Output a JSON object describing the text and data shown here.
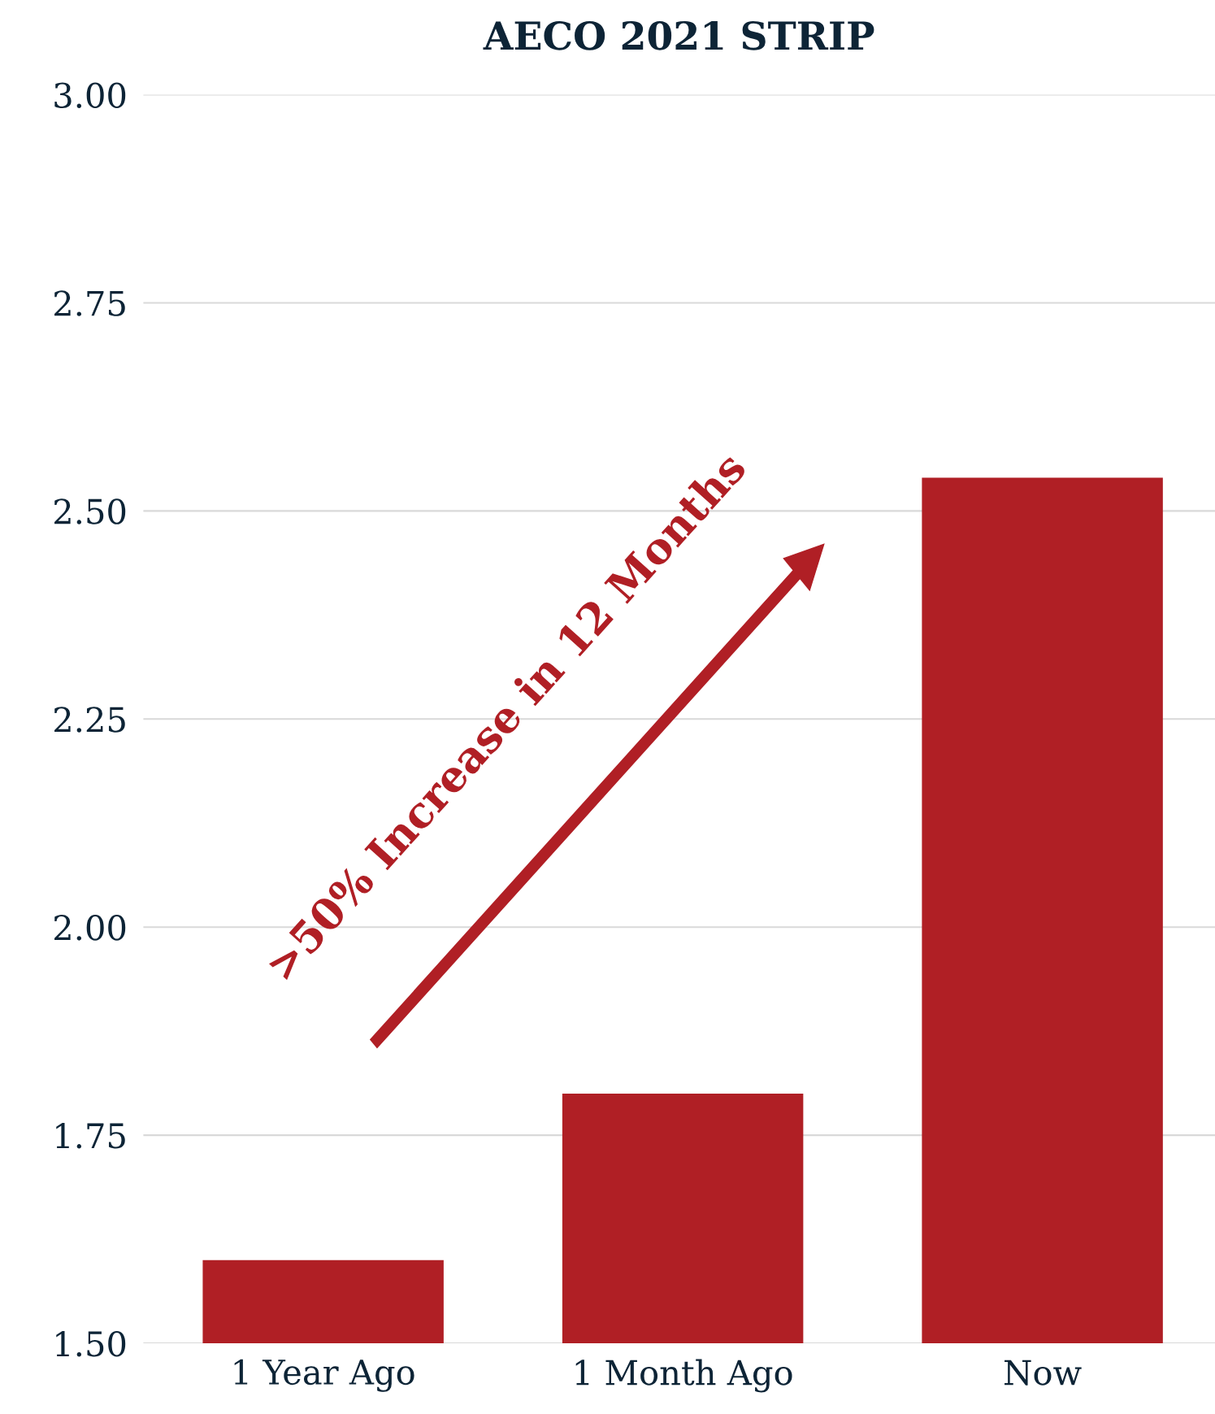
{
  "chart_data": {
    "type": "bar",
    "title": "AECO 2021 STRIP",
    "categories": [
      "1 Year Ago",
      "1 Month Ago",
      "Now"
    ],
    "values": [
      1.6,
      1.8,
      2.54
    ],
    "color": "#b01f25",
    "ylim": [
      1.5,
      3.0
    ],
    "yticks": [
      {
        "value": 1.5,
        "label": "1.50"
      },
      {
        "value": 1.75,
        "label": "1.75"
      },
      {
        "value": 2.0,
        "label": "2.00"
      },
      {
        "value": 2.25,
        "label": "2.25"
      },
      {
        "value": 2.5,
        "label": "2.50"
      },
      {
        "value": 2.75,
        "label": "2.75"
      },
      {
        "value": 3.0,
        "label": "3.00"
      }
    ],
    "grid": "y",
    "legend": false,
    "annotations": [
      ">50% Increase in 12 Months"
    ]
  }
}
